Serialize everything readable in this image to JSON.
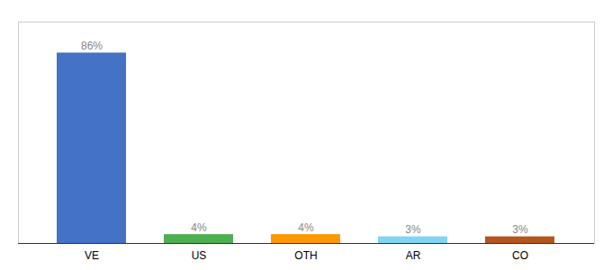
{
  "chart_data": {
    "type": "bar",
    "categories": [
      "VE",
      "US",
      "OTH",
      "AR",
      "CO"
    ],
    "values": [
      86,
      4,
      4,
      3,
      3
    ],
    "value_labels": [
      "86%",
      "4%",
      "4%",
      "3%",
      "3%"
    ],
    "data_labels": true,
    "colors": [
      "#4472c4",
      "#4caf50",
      "#ff9800",
      "#80d4f5",
      "#b5541c"
    ],
    "ylim": [
      0,
      100
    ],
    "grid": false,
    "tick_labels": "x"
  }
}
